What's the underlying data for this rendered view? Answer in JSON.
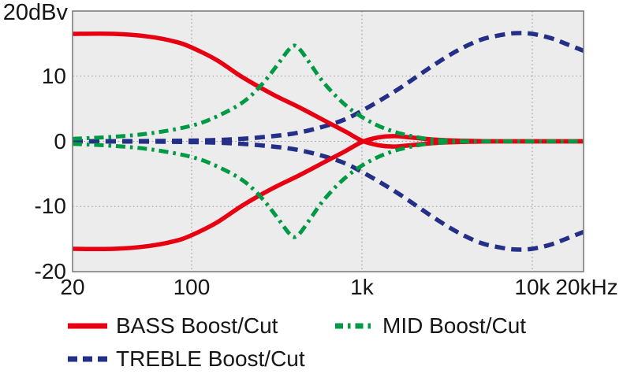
{
  "colors": {
    "bass": "#e60012",
    "mid": "#009a44",
    "treble": "#242f87",
    "plot_bg": "#ececec",
    "grid_line": "#9b9b9b",
    "plot_border": "#7d7d7d",
    "text": "#161616"
  },
  "legend": {
    "items": [
      {
        "label": "BASS Boost/Cut",
        "series": "bass",
        "line_style": "solid"
      },
      {
        "label": "MID Boost/Cut",
        "series": "mid",
        "line_style": "dash-dot"
      },
      {
        "label": "TREBLE Boost/Cut",
        "series": "treble",
        "line_style": "dashed"
      }
    ]
  },
  "chart_data": {
    "type": "line",
    "title": "",
    "x_axis": {
      "scale": "log",
      "unit": "Hz",
      "min": 20,
      "max": 20000,
      "tick_values": [
        20,
        100,
        1000,
        10000,
        20000
      ],
      "tick_labels": [
        "20",
        "100",
        "1k",
        "10k",
        "20kHz"
      ],
      "grid_values": [
        100,
        1000,
        10000
      ]
    },
    "y_axis": {
      "unit": "dBv",
      "unit_label": "20dBv",
      "min": -20,
      "max": 20,
      "tick_values": [
        10,
        0,
        -10,
        -20
      ],
      "tick_labels": [
        "10",
        "0",
        "-10",
        "-20"
      ],
      "grid_values": [
        10,
        0,
        -10
      ]
    },
    "series": [
      {
        "name": "BASS Boost/Cut",
        "series": "bass",
        "line_style": "solid",
        "color": "#e60012",
        "boost": [
          [
            20,
            16.5
          ],
          [
            35,
            16.5
          ],
          [
            55,
            16.1
          ],
          [
            80,
            15.3
          ],
          [
            100,
            14.4
          ],
          [
            140,
            12.5
          ],
          [
            200,
            9.8
          ],
          [
            300,
            7.2
          ],
          [
            430,
            5.2
          ],
          [
            600,
            3.2
          ],
          [
            800,
            1.5
          ],
          [
            1000,
            0.1
          ],
          [
            1250,
            -0.6
          ],
          [
            1550,
            -0.8
          ],
          [
            2000,
            -0.55
          ],
          [
            2700,
            -0.25
          ],
          [
            3800,
            -0.1
          ],
          [
            6000,
            0
          ],
          [
            10000,
            0
          ],
          [
            20000,
            0
          ]
        ],
        "cut": [
          [
            20,
            -16.5
          ],
          [
            35,
            -16.5
          ],
          [
            55,
            -16.1
          ],
          [
            80,
            -15.3
          ],
          [
            100,
            -14.4
          ],
          [
            140,
            -12.5
          ],
          [
            200,
            -9.8
          ],
          [
            300,
            -7.2
          ],
          [
            430,
            -5.2
          ],
          [
            600,
            -3.2
          ],
          [
            800,
            -1.5
          ],
          [
            1000,
            -0.1
          ],
          [
            1250,
            0.6
          ],
          [
            1550,
            0.8
          ],
          [
            2000,
            0.55
          ],
          [
            2700,
            0.25
          ],
          [
            3800,
            0.1
          ],
          [
            6000,
            0
          ],
          [
            10000,
            0
          ],
          [
            20000,
            0
          ]
        ]
      },
      {
        "name": "MID Boost/Cut",
        "series": "mid",
        "line_style": "dash-dot",
        "color": "#009a44",
        "boost": [
          [
            20,
            0.4
          ],
          [
            35,
            0.7
          ],
          [
            60,
            1.3
          ],
          [
            100,
            2.4
          ],
          [
            140,
            3.8
          ],
          [
            200,
            6.0
          ],
          [
            260,
            8.8
          ],
          [
            320,
            11.8
          ],
          [
            370,
            14.0
          ],
          [
            400,
            14.7
          ],
          [
            435,
            14.0
          ],
          [
            500,
            11.8
          ],
          [
            580,
            9.4
          ],
          [
            700,
            7.0
          ],
          [
            850,
            5.0
          ],
          [
            1050,
            3.4
          ],
          [
            1350,
            2.0
          ],
          [
            1800,
            1.0
          ],
          [
            2400,
            0.4
          ],
          [
            3400,
            0.1
          ],
          [
            5000,
            0
          ],
          [
            10000,
            0
          ],
          [
            20000,
            0
          ]
        ],
        "cut": [
          [
            20,
            -0.4
          ],
          [
            35,
            -0.7
          ],
          [
            60,
            -1.3
          ],
          [
            100,
            -2.4
          ],
          [
            140,
            -3.8
          ],
          [
            200,
            -6.0
          ],
          [
            260,
            -8.8
          ],
          [
            320,
            -11.8
          ],
          [
            370,
            -14.0
          ],
          [
            400,
            -14.7
          ],
          [
            435,
            -14.0
          ],
          [
            500,
            -11.8
          ],
          [
            580,
            -9.4
          ],
          [
            700,
            -7.0
          ],
          [
            850,
            -5.0
          ],
          [
            1050,
            -3.4
          ],
          [
            1350,
            -2.0
          ],
          [
            1800,
            -1.0
          ],
          [
            2400,
            -0.4
          ],
          [
            3400,
            -0.1
          ],
          [
            5000,
            0
          ],
          [
            10000,
            0
          ],
          [
            20000,
            0
          ]
        ]
      },
      {
        "name": "TREBLE Boost/Cut",
        "series": "treble",
        "line_style": "dashed",
        "color": "#242f87",
        "boost": [
          [
            20,
            0
          ],
          [
            60,
            0.05
          ],
          [
            120,
            0.15
          ],
          [
            200,
            0.4
          ],
          [
            300,
            0.8
          ],
          [
            420,
            1.3
          ],
          [
            600,
            2.3
          ],
          [
            800,
            3.4
          ],
          [
            1000,
            4.7
          ],
          [
            1300,
            6.4
          ],
          [
            1700,
            8.3
          ],
          [
            2200,
            10.3
          ],
          [
            2900,
            12.4
          ],
          [
            3800,
            14.2
          ],
          [
            5000,
            15.6
          ],
          [
            6500,
            16.3
          ],
          [
            8000,
            16.6
          ],
          [
            10000,
            16.5
          ],
          [
            13000,
            15.8
          ],
          [
            16000,
            14.9
          ],
          [
            20000,
            13.9
          ]
        ],
        "cut": [
          [
            20,
            0
          ],
          [
            60,
            -0.05
          ],
          [
            120,
            -0.15
          ],
          [
            200,
            -0.4
          ],
          [
            300,
            -0.8
          ],
          [
            420,
            -1.3
          ],
          [
            600,
            -2.3
          ],
          [
            800,
            -3.4
          ],
          [
            1000,
            -4.7
          ],
          [
            1300,
            -6.4
          ],
          [
            1700,
            -8.3
          ],
          [
            2200,
            -10.3
          ],
          [
            2900,
            -12.4
          ],
          [
            3800,
            -14.2
          ],
          [
            5000,
            -15.6
          ],
          [
            6500,
            -16.3
          ],
          [
            8000,
            -16.6
          ],
          [
            10000,
            -16.5
          ],
          [
            13000,
            -15.8
          ],
          [
            16000,
            -14.9
          ],
          [
            20000,
            -13.9
          ]
        ]
      }
    ]
  }
}
